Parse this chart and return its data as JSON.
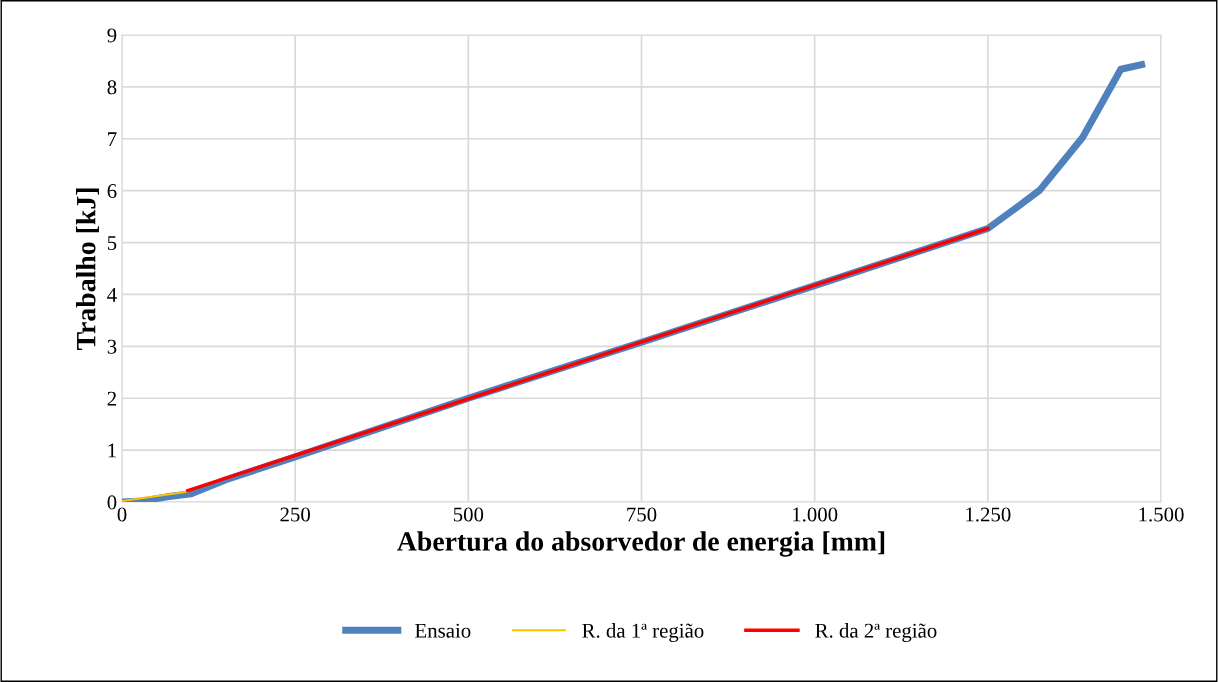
{
  "chart_data": {
    "type": "line",
    "xlabel": "Abertura do absorvedor de energia [mm]",
    "ylabel": "Trabalho [kJ]",
    "xlim": [
      0,
      1500
    ],
    "xticks": [
      0,
      {
        "value": 250,
        "label": "250"
      },
      {
        "value": 500,
        "label": "500"
      },
      {
        "value": 750,
        "label": "750"
      },
      {
        "value": 1000,
        "label": "1.000"
      },
      {
        "value": 1250,
        "label": "1.250"
      },
      {
        "value": 1500,
        "label": "1.500"
      }
    ],
    "ylim": [
      0,
      9
    ],
    "yticks": [
      0,
      1,
      2,
      3,
      4,
      5,
      6,
      7,
      8,
      9
    ],
    "grid": true,
    "legend": "bottom",
    "marker": "none",
    "line_style": "solid",
    "series": [
      {
        "name": "Ensaio",
        "color": "#4f81bd",
        "x": [
          0,
          30,
          65,
          100,
          150,
          250,
          500,
          750,
          1000,
          1250,
          1296,
          1325,
          1387,
          1442,
          1472
        ],
        "values": [
          0,
          0.02,
          0.1,
          0.16,
          0.43,
          0.87,
          2.0,
          3.08,
          4.17,
          5.27,
          5.72,
          6.01,
          7.03,
          8.34,
          8.43
        ]
      },
      {
        "name": "R. da 1ª região",
        "color": "#ffc000",
        "x": [
          0,
          95
        ],
        "values": [
          0.02,
          0.2
        ]
      },
      {
        "name": "R. da 2ª região",
        "color": "#ff0000",
        "x": [
          95,
          1250
        ],
        "values": [
          0.22,
          5.27
        ]
      }
    ]
  }
}
